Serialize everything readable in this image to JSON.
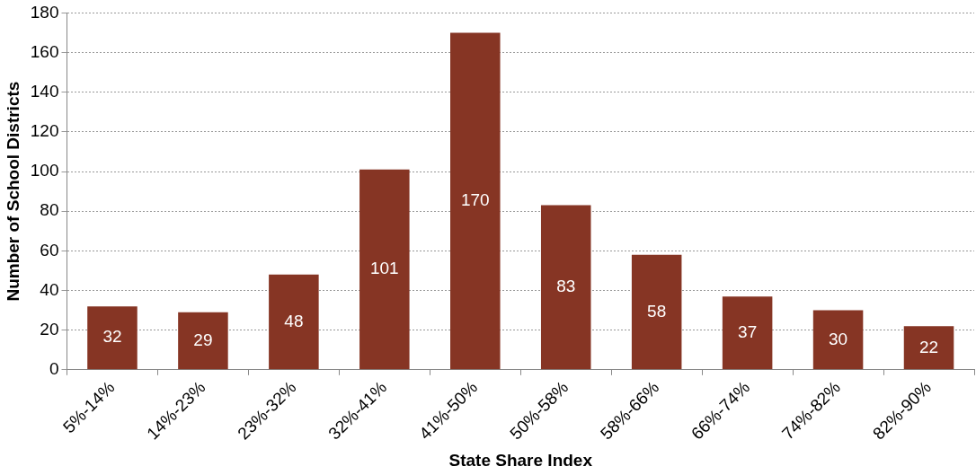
{
  "chart_data": {
    "type": "bar",
    "xlabel": "State Share Index",
    "ylabel": "Number of School Districts",
    "categories": [
      "5%-14%",
      "14%-23%",
      "23%-32%",
      "32%-41%",
      "41%-50%",
      "50%-58%",
      "58%-66%",
      "66%-74%",
      "74%-82%",
      "82%-90%"
    ],
    "values": [
      32,
      29,
      48,
      101,
      170,
      83,
      58,
      37,
      30,
      22
    ],
    "color": "#863524",
    "ylim": [
      0,
      180
    ],
    "yticks": [
      0,
      20,
      40,
      60,
      80,
      100,
      120,
      140,
      160,
      180
    ],
    "grid": "y",
    "data_labels": true,
    "legend": false
  }
}
